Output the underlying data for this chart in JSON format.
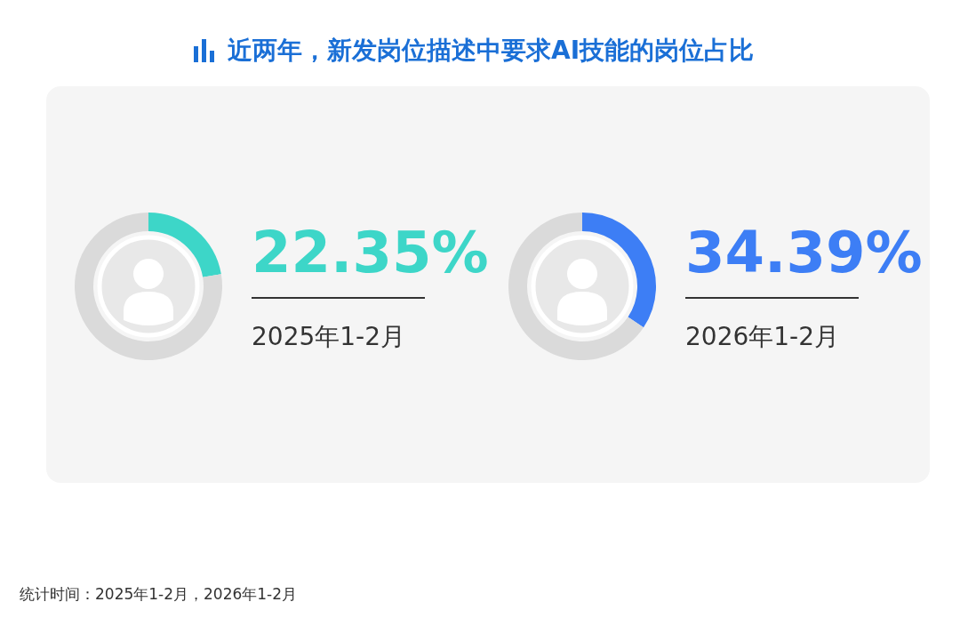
{
  "chart_data": [
    {
      "type": "donut",
      "title": "近两年，新发岗位描述中要求AI技能的岗位占比",
      "subtitle": "2025年1-2月",
      "annotations": [
        "统计时间：2025年1-2月，2026年1-2月"
      ],
      "categories": [
        null,
        null
      ],
      "values": [
        22.35,
        77.65
      ],
      "colors": [
        "#3dd6c8",
        "#dadada"
      ],
      "value_labels": [
        "22.35%",
        null
      ]
    },
    {
      "type": "donut",
      "subtitle": "2026年1-2月",
      "categories": [
        null,
        null
      ],
      "values": [
        34.39,
        65.61
      ],
      "colors": [
        "#3d7ef5",
        "#dadada"
      ],
      "value_labels": [
        "34.39%",
        null
      ]
    }
  ]
}
